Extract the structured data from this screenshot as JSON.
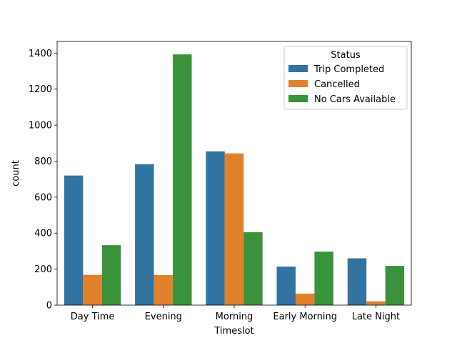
{
  "chart_data": {
    "type": "bar",
    "categories": [
      "Day Time",
      "Evening",
      "Morning",
      "Early Morning",
      "Late Night"
    ],
    "series": [
      {
        "name": "Trip Completed",
        "color": "#3274a1",
        "values": [
          720,
          783,
          854,
          214,
          260
        ]
      },
      {
        "name": "Cancelled",
        "color": "#e1812c",
        "values": [
          168,
          167,
          843,
          64,
          21
        ]
      },
      {
        "name": "No Cars Available",
        "color": "#3a923a",
        "values": [
          333,
          1393,
          405,
          297,
          218
        ]
      }
    ],
    "xlabel": "Timeslot",
    "ylabel": "count",
    "ylim": [
      0,
      1465
    ],
    "yticks": [
      0,
      200,
      400,
      600,
      800,
      1000,
      1200,
      1400
    ],
    "legend": {
      "title": "Status",
      "position": "top-right"
    },
    "grid": false
  }
}
